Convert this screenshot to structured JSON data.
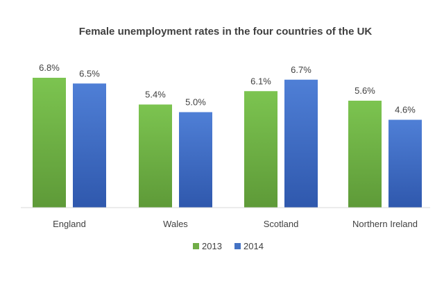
{
  "chart_data": {
    "type": "bar",
    "title": "Female unemployment rates in the four countries of the UK",
    "categories": [
      "England",
      "Wales",
      "Scotland",
      "Northern Ireland"
    ],
    "series": [
      {
        "name": "2013",
        "values": [
          6.8,
          5.4,
          6.1,
          5.6
        ],
        "labels": [
          "6.8%",
          "5.4%",
          "6.1%",
          "5.6%"
        ],
        "color": "#70ad47"
      },
      {
        "name": "2014",
        "values": [
          6.5,
          5.0,
          6.7,
          4.6
        ],
        "labels": [
          "6.5%",
          "5.0%",
          "6.7%",
          "4.6%"
        ],
        "color": "#4472c4"
      }
    ],
    "ylim": [
      0,
      7
    ],
    "grid": false,
    "legend_position": "bottom"
  }
}
